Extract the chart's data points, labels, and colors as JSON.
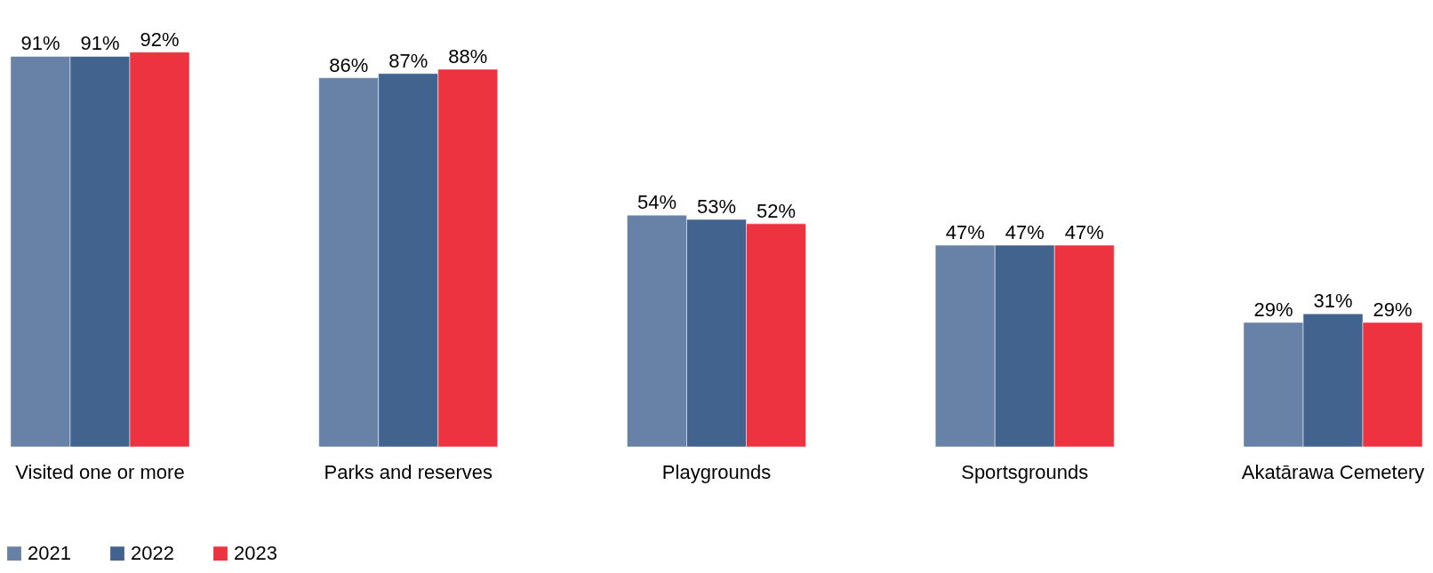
{
  "chart_data": {
    "type": "bar",
    "categories": [
      "Visited one or more",
      "Parks and reserves",
      "Playgrounds",
      "Sportsgrounds",
      "Akatārawa Cemetery"
    ],
    "series": [
      {
        "name": "2021",
        "color": "#6782a6",
        "values": [
          91,
          86,
          54,
          47,
          29
        ],
        "value_labels": [
          "91%",
          "86%",
          "54%",
          "47%",
          "29%"
        ]
      },
      {
        "name": "2022",
        "color": "#43638f",
        "values": [
          91,
          87,
          53,
          47,
          31
        ],
        "value_labels": [
          "91%",
          "87%",
          "53%",
          "47%",
          "31%"
        ]
      },
      {
        "name": "2023",
        "color": "#ee3340",
        "values": [
          92,
          88,
          52,
          47,
          29
        ],
        "value_labels": [
          "92%",
          "88%",
          "52%",
          "47%",
          "29%"
        ]
      }
    ],
    "grid": false,
    "legend": "bottom"
  }
}
